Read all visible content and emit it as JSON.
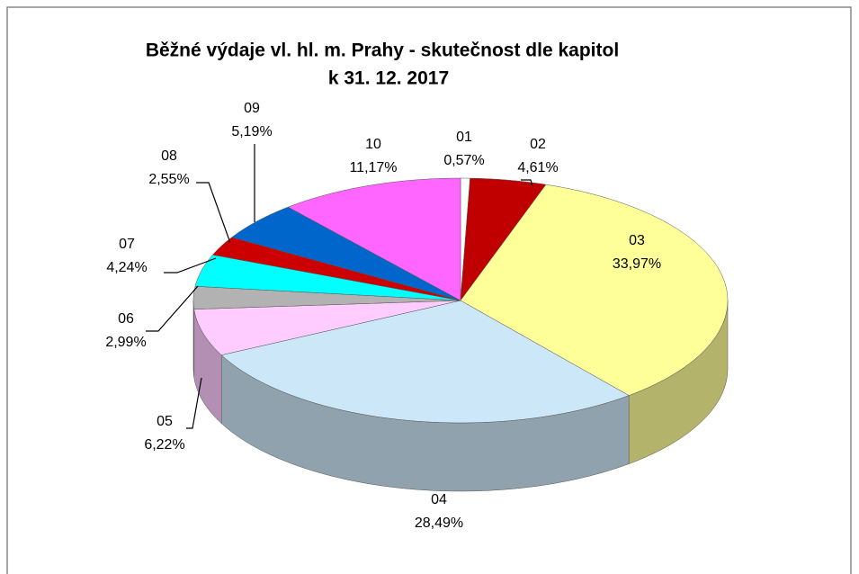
{
  "chart_data": {
    "type": "pie3d",
    "title": "Běžné výdaje vl. hl. m. Prahy - skutečnost dle kapitol",
    "subtitle": "k 31. 12. 2017",
    "categories": [
      "01",
      "02",
      "03",
      "04",
      "05",
      "06",
      "07",
      "08",
      "09",
      "10"
    ],
    "values": [
      0.57,
      4.61,
      33.97,
      28.49,
      6.22,
      2.99,
      4.24,
      2.55,
      5.19,
      11.17
    ],
    "value_labels": [
      "0,57%",
      "4,61%",
      "33,97%",
      "28,49%",
      "6,22%",
      "2,99%",
      "4,24%",
      "2,55%",
      "5,19%",
      "11,17%"
    ],
    "colors": [
      "#ffffff",
      "#c00000",
      "#ffff99",
      "#cce8f8",
      "#ffccff",
      "#b2b2b2",
      "#00ffff",
      "#cc0000",
      "#0066cc",
      "#ff66ff"
    ]
  }
}
